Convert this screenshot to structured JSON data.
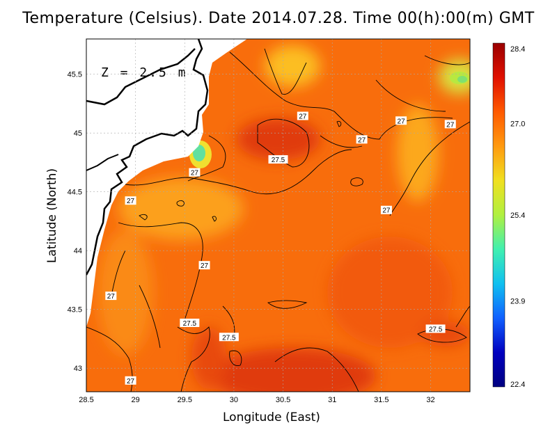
{
  "title": "Temperature (Celsius). Date 2014.07.28. Time 00(h):00(m)  GMT",
  "depth_label": "Z = 2.5 m",
  "xlabel": "Longitude (East)",
  "ylabel": "Latitude (North)",
  "x_ticks": [
    "28.5",
    "29",
    "29.5",
    "30",
    "30.5",
    "31",
    "31.5",
    "32"
  ],
  "y_ticks": [
    "43",
    "43.5",
    "44",
    "44.5",
    "45",
    "45.5"
  ],
  "colorbar": {
    "ticks": [
      "28.4",
      "27.0",
      "25.4",
      "23.9",
      "22.4"
    ],
    "min": 22.4,
    "max": 28.4,
    "colors": [
      "#9a0000",
      "#e01000",
      "#ff5a00",
      "#ff9a10",
      "#f0e020",
      "#b0f040",
      "#40f0b0",
      "#10c0f0",
      "#1060ff",
      "#0000c0",
      "#000080"
    ]
  },
  "chart_data": {
    "type": "heatmap",
    "variable": "Temperature (Celsius)",
    "depth": "Z = 2.5 m",
    "xlim": [
      28.5,
      32.4
    ],
    "ylim": [
      42.8,
      45.8
    ],
    "grid": true,
    "contour_labels": [
      {
        "text": "27",
        "lon": 30.7,
        "lat": 45.14
      },
      {
        "text": "27",
        "lon": 31.7,
        "lat": 45.1
      },
      {
        "text": "27",
        "lon": 32.2,
        "lat": 45.07
      },
      {
        "text": "27",
        "lon": 31.3,
        "lat": 44.94
      },
      {
        "text": "27.5",
        "lon": 30.45,
        "lat": 44.77
      },
      {
        "text": "27",
        "lon": 29.6,
        "lat": 44.66
      },
      {
        "text": "27",
        "lon": 28.95,
        "lat": 44.42
      },
      {
        "text": "27",
        "lon": 31.55,
        "lat": 44.34
      },
      {
        "text": "27",
        "lon": 29.7,
        "lat": 43.87
      },
      {
        "text": "27",
        "lon": 28.75,
        "lat": 43.61
      },
      {
        "text": "27.5",
        "lon": 29.55,
        "lat": 43.38
      },
      {
        "text": "27.5",
        "lon": 29.95,
        "lat": 43.26
      },
      {
        "text": "27.5",
        "lon": 32.05,
        "lat": 43.33
      },
      {
        "text": "27",
        "lon": 28.95,
        "lat": 42.89
      }
    ]
  }
}
